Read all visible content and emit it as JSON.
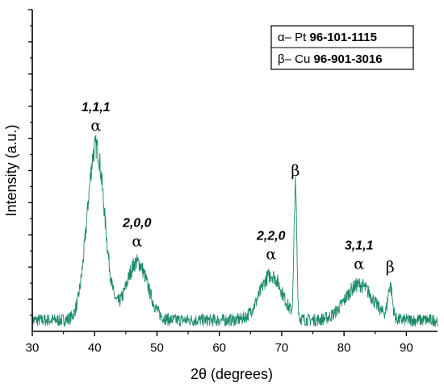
{
  "chart_data": {
    "type": "line",
    "title": "",
    "xlabel": "2θ (degrees)",
    "ylabel": "Intensity (a.u.)",
    "xlim": [
      30,
      95
    ],
    "ylim": [
      0,
      100
    ],
    "x_ticks": [
      30,
      40,
      50,
      60,
      70,
      80,
      90
    ],
    "grid": false,
    "line_color": "#1a8a6a",
    "legend": {
      "placement": "top-right",
      "entries": [
        {
          "symbol": "α",
          "phase": "Pt",
          "code": "96-101-1115"
        },
        {
          "symbol": "β",
          "phase": "Cu",
          "code": "96-901-3016"
        }
      ]
    },
    "peaks": [
      {
        "position": 40.2,
        "intensity": 54,
        "width": 1.4,
        "phase": "α",
        "hkl": "1,1,1"
      },
      {
        "position": 46.8,
        "intensity": 18,
        "width": 1.7,
        "phase": "α",
        "hkl": "2,0,0"
      },
      {
        "position": 68.3,
        "intensity": 14,
        "width": 1.8,
        "phase": "α",
        "hkl": "2,2,0"
      },
      {
        "position": 72.2,
        "intensity": 40,
        "width": 0.22,
        "phase": "β",
        "hkl": ""
      },
      {
        "position": 82.4,
        "intensity": 11,
        "width": 2.2,
        "phase": "α",
        "hkl": "3,1,1"
      },
      {
        "position": 87.4,
        "intensity": 10,
        "width": 0.35,
        "phase": "β",
        "hkl": ""
      }
    ],
    "baseline": 3.5,
    "noise": 1.8
  }
}
